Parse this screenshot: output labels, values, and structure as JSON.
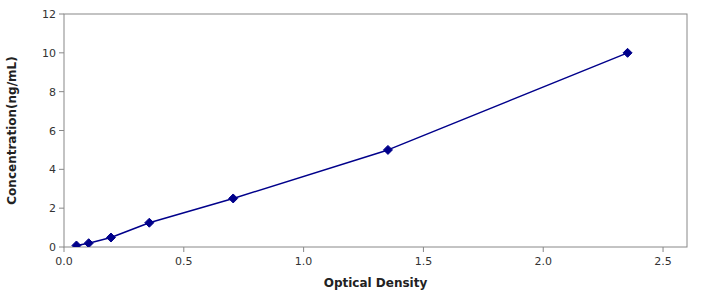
{
  "chart_data": {
    "type": "line",
    "x": [
      0.052,
      0.103,
      0.196,
      0.356,
      0.706,
      1.352,
      2.352
    ],
    "values": [
      0.078,
      0.195,
      0.488,
      1.25,
      2.5,
      5.0,
      10.0
    ],
    "color": "#00008B",
    "marker": "diamond",
    "xlabel": "Optical Density",
    "ylabel": "Concentration(ng/mL)",
    "xlim": [
      0,
      2.6
    ],
    "ylim": [
      0,
      12
    ],
    "xticks": [
      {
        "value": 0,
        "label": "0.0"
      },
      0.5,
      {
        "value": 1,
        "label": "1.0"
      },
      1.5,
      {
        "value": 2,
        "label": "2.0"
      },
      2.5
    ],
    "yticks": [
      0,
      2,
      4,
      6,
      8,
      10,
      12
    ]
  }
}
